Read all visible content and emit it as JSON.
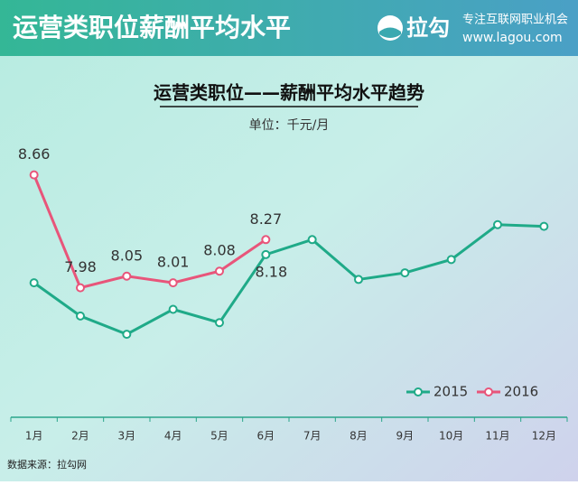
{
  "header": {
    "title": "运营类职位薪酬平均水平",
    "logo": "拉勾",
    "slogan": "专注互联网职业机会",
    "url": "www.lagou.com"
  },
  "chart_data": {
    "type": "line",
    "title": "运营类职位——薪酬平均水平趋势",
    "subtitle": "单位：千元/月",
    "categories": [
      "1月",
      "2月",
      "3月",
      "4月",
      "5月",
      "6月",
      "7月",
      "8月",
      "9月",
      "10月",
      "11月",
      "12月"
    ],
    "series": [
      {
        "name": "2015",
        "color": "#1faa88",
        "values": [
          8.01,
          7.81,
          7.7,
          7.85,
          7.77,
          8.18,
          8.27,
          8.03,
          8.07,
          8.15,
          8.36,
          8.35
        ],
        "value_labels": [
          null,
          null,
          null,
          null,
          null,
          "8.18",
          null,
          null,
          null,
          null,
          null,
          null
        ]
      },
      {
        "name": "2016",
        "color": "#e8557a",
        "values": [
          8.66,
          7.98,
          8.05,
          8.01,
          8.08,
          8.27,
          null,
          null,
          null,
          null,
          null,
          null
        ],
        "value_labels": [
          "8.66",
          "7.98",
          "8.05",
          "8.01",
          "8.08",
          "8.27",
          null,
          null,
          null,
          null,
          null,
          null
        ]
      }
    ],
    "ylim": [
      7.2,
      8.9
    ],
    "legend": "bottom-right"
  },
  "source": "数据来源：拉勾网"
}
